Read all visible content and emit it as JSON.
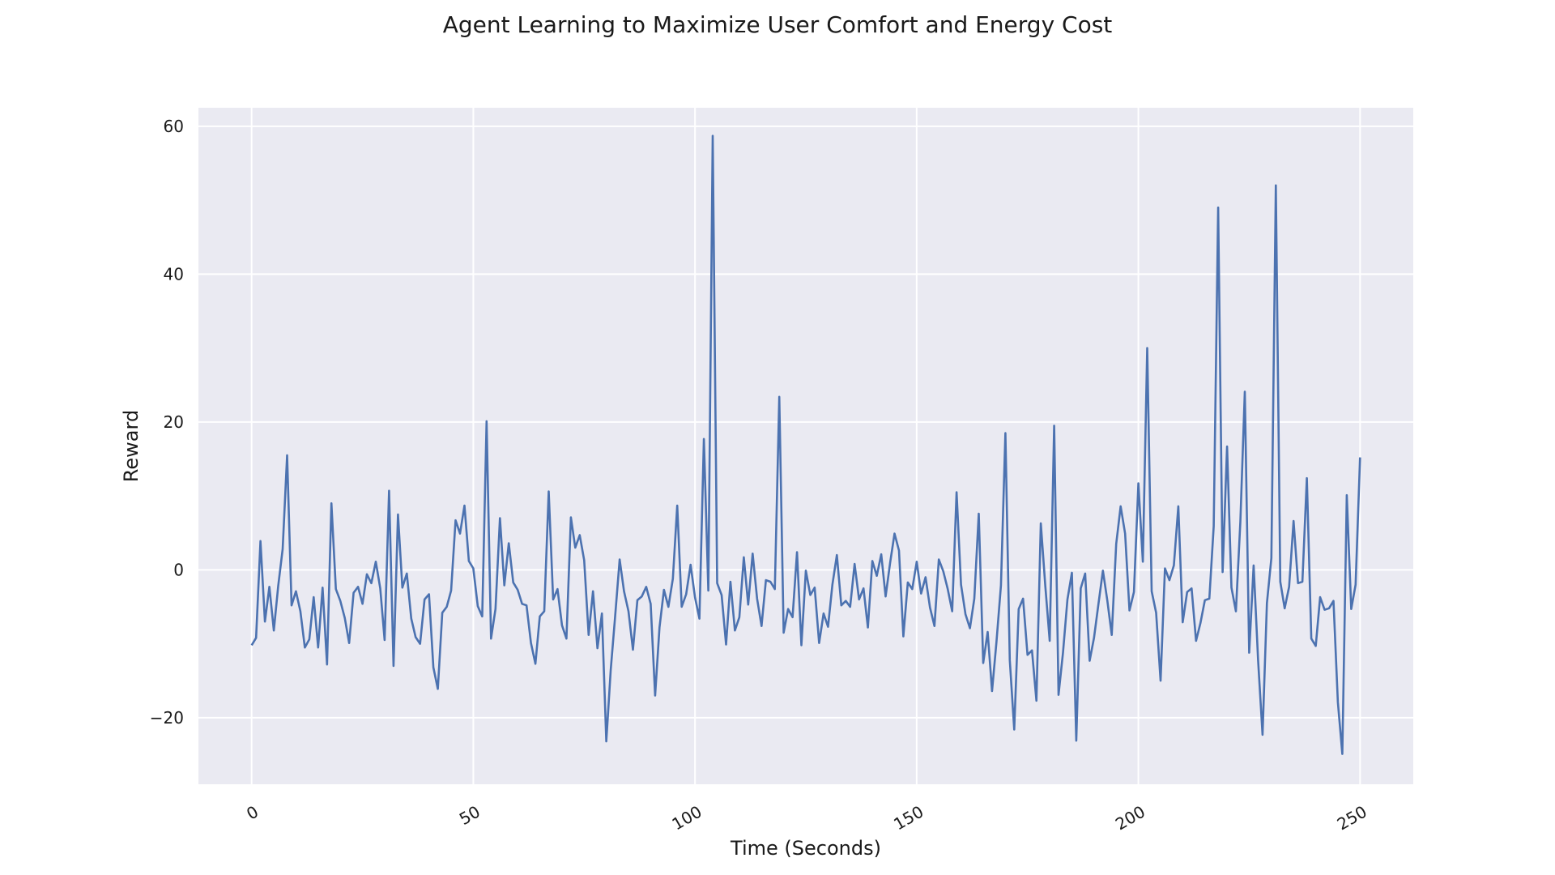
{
  "chart_data": {
    "type": "line",
    "title": "Agent Learning to Maximize User Comfort and Energy Cost",
    "xlabel": "Time (Seconds)",
    "ylabel": "Reward",
    "xlim": [
      -12,
      262
    ],
    "ylim": [
      -29,
      62.5
    ],
    "xticks": [
      0,
      50,
      100,
      150,
      200,
      250
    ],
    "yticks": [
      -20,
      0,
      20,
      40,
      60
    ],
    "grid": true,
    "line_color": "#4c72b0",
    "background_color": "#eaeaf2",
    "series": [
      {
        "x": [
          0,
          1,
          2,
          3,
          4,
          5,
          6,
          7,
          8,
          9,
          10,
          11,
          12,
          13,
          14,
          15,
          16,
          17,
          18,
          19,
          20,
          21,
          22,
          23,
          24,
          25,
          26,
          27,
          28,
          29,
          30,
          31,
          32,
          33,
          34,
          35,
          36,
          37,
          38,
          39,
          40,
          41,
          42,
          43,
          44,
          45,
          46,
          47,
          48,
          49,
          50,
          51,
          52,
          53,
          54,
          55,
          56,
          57,
          58,
          59,
          60,
          61,
          62,
          63,
          64,
          65,
          66,
          67,
          68,
          69,
          70,
          71,
          72,
          73,
          74,
          75,
          76,
          77,
          78,
          79,
          80,
          81,
          82,
          83,
          84,
          85,
          86,
          87,
          88,
          89,
          90,
          91,
          92,
          93,
          94,
          95,
          96,
          97,
          98,
          99,
          100,
          101,
          102,
          103,
          104,
          105,
          106,
          107,
          108,
          109,
          110,
          111,
          112,
          113,
          114,
          115,
          116,
          117,
          118,
          119,
          120,
          121,
          122,
          123,
          124,
          125,
          126,
          127,
          128,
          129,
          130,
          131,
          132,
          133,
          134,
          135,
          136,
          137,
          138,
          139,
          140,
          141,
          142,
          143,
          144,
          145,
          146,
          147,
          148,
          149,
          150,
          151,
          152,
          153,
          154,
          155,
          156,
          157,
          158,
          159,
          160,
          161,
          162,
          163,
          164,
          165,
          166,
          167,
          168,
          169,
          170,
          171,
          172,
          173,
          174,
          175,
          176,
          177,
          178,
          179,
          180,
          181,
          182,
          183,
          184,
          185,
          186,
          187,
          188,
          189,
          190,
          191,
          192,
          193,
          194,
          195,
          196,
          197,
          198,
          199,
          200,
          201,
          202,
          203,
          204,
          205,
          206,
          207,
          208,
          209,
          210,
          211,
          212,
          213,
          214,
          215,
          216,
          217,
          218,
          219,
          220,
          221,
          222,
          223,
          224,
          225,
          226,
          227,
          228,
          229,
          230,
          231,
          232,
          233,
          234,
          235,
          236,
          237,
          238,
          239,
          240,
          241,
          242,
          243,
          244,
          245,
          246,
          247,
          248,
          249,
          250
        ],
        "y": [
          -10.2,
          -9.2,
          3.9,
          -7.0,
          -2.3,
          -8.2,
          -2.2,
          2.8,
          15.5,
          -4.8,
          -2.9,
          -5.6,
          -10.5,
          -9.4,
          -3.7,
          -10.5,
          -2.4,
          -12.8,
          9.0,
          -2.6,
          -4.2,
          -6.5,
          -9.9,
          -3.1,
          -2.3,
          -4.6,
          -0.6,
          -1.8,
          1.1,
          -2.5,
          -9.5,
          10.7,
          -13.0,
          7.5,
          -2.4,
          -0.5,
          -6.6,
          -9.1,
          -10.0,
          -4.0,
          -3.3,
          -13.2,
          -16.1,
          -5.8,
          -5.0,
          -2.8,
          6.7,
          4.9,
          8.7,
          1.2,
          0.2,
          -4.9,
          -6.3,
          20.1,
          -9.3,
          -5.3,
          7.0,
          -2.1,
          3.6,
          -1.7,
          -2.7,
          -4.6,
          -4.8,
          -9.9,
          -12.7,
          -6.3,
          -5.6,
          10.6,
          -4.0,
          -2.6,
          -7.5,
          -9.3,
          7.1,
          3.0,
          4.7,
          1.3,
          -8.8,
          -2.9,
          -10.6,
          -5.9,
          -23.2,
          -13.5,
          -6.2,
          1.4,
          -2.9,
          -5.6,
          -10.8,
          -4.1,
          -3.6,
          -2.3,
          -4.6,
          -17.0,
          -7.8,
          -2.7,
          -5.0,
          -1.2,
          8.7,
          -5.0,
          -3.3,
          0.7,
          -3.7,
          -6.6,
          17.7,
          -2.8,
          58.7,
          -1.8,
          -3.4,
          -10.1,
          -1.6,
          -8.2,
          -6.4,
          1.7,
          -4.7,
          2.2,
          -3.9,
          -7.6,
          -1.4,
          -1.6,
          -2.6,
          23.4,
          -8.5,
          -5.3,
          -6.4,
          2.4,
          -10.2,
          -0.1,
          -3.4,
          -2.4,
          -9.9,
          -5.9,
          -7.7,
          -2.0,
          2.0,
          -4.8,
          -4.2,
          -5.0,
          0.8,
          -4.0,
          -2.5,
          -7.8,
          1.2,
          -0.8,
          2.1,
          -3.6,
          0.9,
          4.9,
          2.6,
          -9.0,
          -1.7,
          -2.6,
          1.1,
          -3.2,
          -1.0,
          -5.1,
          -7.6,
          1.4,
          -0.2,
          -2.6,
          -5.6,
          10.5,
          -2.0,
          -6.0,
          -7.9,
          -3.9,
          7.6,
          -12.6,
          -8.4,
          -16.4,
          -9.7,
          -2.1,
          18.5,
          -12.2,
          -21.6,
          -5.3,
          -3.9,
          -11.5,
          -10.9,
          -17.7,
          6.3,
          -2.1,
          -9.6,
          19.5,
          -16.9,
          -11.2,
          -4.0,
          -0.4,
          -23.1,
          -2.5,
          -0.5,
          -12.3,
          -9.2,
          -4.6,
          -0.1,
          -4.2,
          -8.8,
          3.5,
          8.6,
          4.9,
          -5.5,
          -3.0,
          11.7,
          1.1,
          30.0,
          -2.9,
          -5.8,
          -15.0,
          0.2,
          -1.4,
          0.6,
          8.6,
          -7.1,
          -3.0,
          -2.5,
          -9.6,
          -7.2,
          -4.1,
          -3.9,
          5.9,
          49.0,
          -0.3,
          16.7,
          -2.4,
          -5.6,
          6.5,
          24.1,
          -11.2,
          0.6,
          -12.2,
          -22.3,
          -4.5,
          1.6,
          52.0,
          -1.6,
          -5.2,
          -2.3,
          6.6,
          -1.8,
          -1.6,
          12.4,
          -9.3,
          -10.3,
          -3.7,
          -5.4,
          -5.2,
          -4.2,
          -17.9,
          -24.9,
          10.1,
          -5.3,
          -2.0,
          15.2
        ]
      }
    ]
  }
}
